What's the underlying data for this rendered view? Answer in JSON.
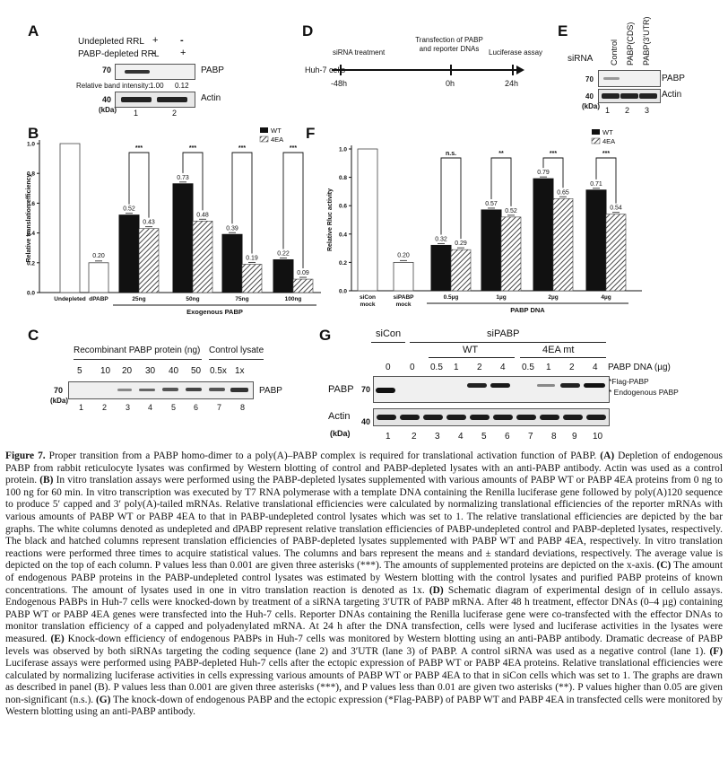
{
  "panels": {
    "A": {
      "letter": "A",
      "row1_label": "Undepleted RRL",
      "row1_signs": [
        "+",
        "-"
      ],
      "row2_label": "PABP-depleted RRL",
      "row2_signs": [
        "-",
        "+"
      ],
      "mw_top": "70",
      "mw_bottom": "40",
      "kda": "(kDa)",
      "rbi_label": "Relative band intensity:",
      "rbi_values": [
        "1.00",
        "0.12"
      ],
      "blot_top_label": "PABP",
      "blot_bottom_label": "Actin",
      "lanes": [
        "1",
        "2"
      ]
    },
    "B": {
      "letter": "B",
      "legend_wt": "WT",
      "legend_4ea": "4EA",
      "xgroup_label": "Exogenous PABP",
      "sig": [
        "***",
        "***",
        "***",
        "***"
      ]
    },
    "C": {
      "letter": "C",
      "header_left": "Recombinant PABP protein (ng)",
      "header_right": "Control lysate",
      "amounts": [
        "5",
        "10",
        "20",
        "30",
        "40",
        "50",
        "0.5x",
        "1x"
      ],
      "mw": "70",
      "kda": "(kDa)",
      "blot_label": "PABP",
      "lanes": [
        "1",
        "2",
        "3",
        "4",
        "5",
        "6",
        "7",
        "8"
      ]
    },
    "D": {
      "letter": "D",
      "step1": "siRNA treatment",
      "step2": "Transfection of PABP and reporter DNAs",
      "step3": "Luciferase assay",
      "cells": "Huh-7 cells",
      "times": [
        "-48h",
        "0h",
        "24h"
      ]
    },
    "E": {
      "letter": "E",
      "sirna": "siRNA",
      "cols": [
        "Control",
        "PABP(CDS)",
        "PABP(3'UTR)"
      ],
      "mw_top": "70",
      "mw_bottom": "40",
      "kda": "(kDa)",
      "blot_top_label": "PABP",
      "blot_bottom_label": "Actin",
      "lanes": [
        "1",
        "2",
        "3"
      ]
    },
    "F": {
      "letter": "F",
      "legend_wt": "WT",
      "legend_4ea": "4EA",
      "xgroup_label": "PABP DNA",
      "sig": [
        "n.s.",
        "**",
        "***",
        "***"
      ]
    },
    "G": {
      "letter": "G",
      "sicon": "siCon",
      "sipabp": "siPABP",
      "wt": "WT",
      "mt": "4EA mt",
      "dna_label": "PABP DNA (µg)",
      "amounts": [
        "0",
        "0",
        "0.5",
        "1",
        "2",
        "4",
        "0.5",
        "1",
        "2",
        "4"
      ],
      "row_top": "PABP",
      "row_bottom": "Actin",
      "mw_top": "70",
      "mw_bottom": "40",
      "kda": "(kDa)",
      "flag": "*Flag-PABP",
      "endo": "* Endogenous PABP",
      "lanes": [
        "1",
        "2",
        "3",
        "4",
        "5",
        "6",
        "7",
        "8",
        "9",
        "10"
      ]
    }
  },
  "chart_data": [
    {
      "panel": "B",
      "type": "bar",
      "title": "",
      "ylabel": "Relative translation efficiency",
      "xlabel": "Exogenous PABP",
      "ylim": [
        0,
        1.0
      ],
      "yticks": [
        "0.0",
        "0.2",
        "0.4",
        "0.6",
        "0.8",
        "1.0"
      ],
      "singles": [
        {
          "label": "Undepleted",
          "value": 1.0,
          "value_label": ""
        },
        {
          "label": "dPABP",
          "value": 0.2,
          "value_label": "0.20"
        }
      ],
      "categories": [
        "25ng",
        "50ng",
        "75ng",
        "100ng"
      ],
      "series": [
        {
          "name": "WT",
          "values": [
            0.52,
            0.73,
            0.39,
            0.22
          ],
          "labels": [
            "0.52",
            "0.73",
            "0.39",
            "0.22"
          ]
        },
        {
          "name": "4EA",
          "values": [
            0.43,
            0.48,
            0.19,
            0.09
          ],
          "labels": [
            "0.43",
            "0.48",
            "0.19",
            "0.09"
          ]
        }
      ]
    },
    {
      "panel": "F",
      "type": "bar",
      "title": "",
      "ylabel": "Relative Rluc activity",
      "xlabel": "PABP DNA",
      "ylim": [
        0,
        1.0
      ],
      "yticks": [
        "0.0",
        "0.2",
        "0.4",
        "0.6",
        "0.8",
        "1.0"
      ],
      "singles": [
        {
          "label": "siCon mock",
          "value": 1.0,
          "value_label": ""
        },
        {
          "label": "siPABP mock",
          "value": 0.2,
          "value_label": "0.20"
        }
      ],
      "categories": [
        "0.5µg",
        "1µg",
        "2µg",
        "4µg"
      ],
      "series": [
        {
          "name": "WT",
          "values": [
            0.32,
            0.57,
            0.79,
            0.71
          ],
          "labels": [
            "0.32",
            "0.57",
            "0.79",
            "0.71"
          ]
        },
        {
          "name": "4EA",
          "values": [
            0.29,
            0.52,
            0.65,
            0.54
          ],
          "labels": [
            "0.29",
            "0.52",
            "0.65",
            "0.54"
          ]
        }
      ]
    }
  ],
  "caption": {
    "title": "Figure 7.",
    "p1": " Proper transition from a PABP homo-dimer to a poly(A)–PABP complex is required for translational activation function of PABP. ",
    "a_label": "(A)",
    "a_text": " Depletion of endogenous PABP from rabbit reticulocyte lysates was confirmed by Western blotting of control and PABP-depleted lysates with an anti-PABP antibody. Actin was used as a control protein. ",
    "b_label": "(B)",
    "b_text": " In vitro translation assays were performed using the PABP-depleted lysates supplemented with various amounts of PABP WT or PABP 4EA proteins from 0 ng to 100 ng for 60 min. In vitro transcription was executed by T7 RNA polymerase with a template DNA containing the Renilla luciferase gene followed by poly(A)120 sequence to produce 5′ capped and 3′ poly(A)-tailed mRNAs. Relative translational efficiencies were calculated by normalizing translational efficiencies of the reporter mRNAs with various amounts of PABP WT or PABP 4EA to that in PABP-undepleted control lysates which was set to 1. The relative translational efficiencies are depicted by the bar graphs. The white columns denoted as undepleted and dPABP represent relative translation efficiencies of PABP-undepleted control and PABP-depleted lysates, respectively. The black and hatched columns represent translation efficiencies of PABP-depleted lysates supplemented with PABP WT and PABP 4EA, respectively. In vitro translation reactions were performed three times to acquire statistical values. The columns and bars represent the means and ± standard deviations, respectively. The average value is depicted on the top of each column. P values less than 0.001 are given three asterisks (***). The amounts of supplemented proteins are depicted on the x-axis. ",
    "c_label": "(C)",
    "c_text": " The amount of endogenous PABP proteins in the PABP-undepleted control lysates was estimated by Western blotting with the control lysates and purified PABP proteins of known concentrations. The amount of lysates used in one in vitro translation reaction is denoted as 1x. ",
    "d_label": "(D)",
    "d_text": " Schematic diagram of experimental design of in cellulo assays. Endogenous PABPs in Huh-7 cells were knocked-down by treatment of a siRNA targeting 3′UTR of PABP mRNA. After 48 h treatment, effector DNAs (0–4 µg) containing PABP WT or PABP 4EA genes were transfected into the Huh-7 cells. Reporter DNAs containing the Renilla luciferase gene were co-transfected with the effector DNAs to monitor translation efficiency of a capped and polyadenylated mRNA. At 24 h after the DNA transfection, cells were lysed and luciferase activities in the lysates were measured. ",
    "e_label": "(E)",
    "e_text": " Knock-down efficiency of endogenous PABPs in Huh-7 cells was monitored by Western blotting using an anti-PABP antibody. Dramatic decrease of PABP levels was observed by both siRNAs targeting the coding sequence (lane 2) and 3′UTR (lane 3) of PABP. A control siRNA was used as a negative control (lane 1). ",
    "f_label": "(F)",
    "f_text": " Luciferase assays were performed using PABP-depleted Huh-7 cells after the ectopic expression of PABP WT or PABP 4EA proteins. Relative translational efficiencies were calculated by normalizing luciferase activities in cells expressing various amounts of PABP WT or PABP 4EA to that in siCon cells which was set to 1. The graphs are drawn as described in panel (B). P values less than 0.001 are given three asterisks (***), and P values less than 0.01 are given two asterisks (**). P values higher than 0.05 are given non-significant (n.s.). ",
    "g_label": "(G)",
    "g_text": " The knock-down of endogenous PABP and the ectopic expression (*Flag-PABP) of PABP WT and PABP 4EA in transfected cells were monitored by Western blotting using an anti-PABP antibody."
  }
}
